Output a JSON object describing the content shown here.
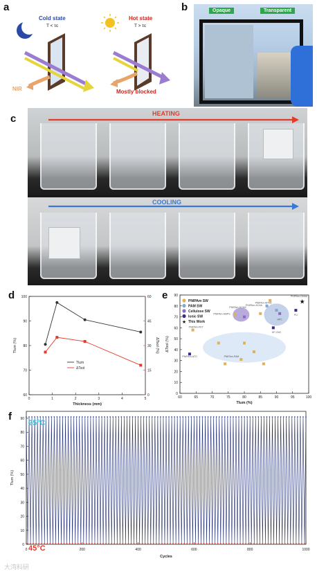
{
  "panels": {
    "a": "a",
    "b": "b",
    "c": "c",
    "d": "d",
    "e": "e",
    "f": "f"
  },
  "panel_a": {
    "cold_label": "Cold state",
    "cold_cond": "T < τc",
    "hot_label": "Hot state",
    "hot_cond": "T > τc",
    "nir": "NIR",
    "blocked": "Mostly blocked"
  },
  "panel_b": {
    "opaque": "Opaque",
    "transparent": "Transparent"
  },
  "panel_c": {
    "heating": "HEATING",
    "cooling": "COOLING"
  },
  "colors": {
    "heat_arrow": "#e53a2a",
    "cool_arrow": "#3a78d8",
    "b_tag": "#2aa84a",
    "cyan_label": "#33c7d6",
    "red_label": "#e53a2a",
    "navy_line": "#1f2a6b"
  },
  "chart_data": [
    {
      "id": "d",
      "type": "line",
      "xlabel": "Thickness (mm)",
      "ylabel_left": "Tlum (%)",
      "ylabel_right": "ΔTsol (%)",
      "x_ticks": [
        "0",
        "1",
        "2",
        "3",
        "4",
        "5"
      ],
      "y_ticks_left": [
        "60",
        "70",
        "80",
        "90",
        "100"
      ],
      "y_ticks_right": [
        "0",
        "15",
        "30",
        "45",
        "60"
      ],
      "xlim": [
        0,
        5
      ],
      "ylim_left": [
        60,
        100
      ],
      "ylim_right": [
        0,
        60
      ],
      "series": [
        {
          "name": "Tlum",
          "axis": "left",
          "color": "#333333",
          "x": [
            0.7,
            1.2,
            2.4,
            4.8
          ],
          "y": [
            80.5,
            97.5,
            90.5,
            85.5
          ]
        },
        {
          "name": "ΔTsol",
          "axis": "right",
          "color": "#e53a2a",
          "x": [
            0.7,
            1.2,
            2.4,
            4.8
          ],
          "y": [
            26,
            35,
            32.5,
            18
          ]
        }
      ]
    },
    {
      "id": "e",
      "type": "scatter",
      "xlabel": "Tlum (%)",
      "ylabel": "ΔTsol (%)",
      "x_ticks": [
        "60",
        "65",
        "70",
        "75",
        "80",
        "85",
        "90",
        "95",
        "100"
      ],
      "y_ticks": [
        "0",
        "10",
        "20",
        "30",
        "40",
        "50",
        "60",
        "70",
        "80",
        "90"
      ],
      "xlim": [
        60,
        100
      ],
      "ylim": [
        0,
        90
      ],
      "legend": [
        "PNIPAm SW",
        "PAM SW",
        "Cellulose SW",
        "Ionic SW",
        "This Work"
      ],
      "annotations": [
        "PNIPAm-DMAA",
        "PNIPAm-ACAA",
        "PNIPAm-DCMC",
        "PNIPAm-HPMC",
        "PNIPAm-PET",
        "PNIPAm-ATO",
        "SF-CNC",
        "PU",
        "HPC",
        "PNIPAm-AMPS",
        "PNIPAm-PAM"
      ],
      "points": [
        {
          "x": 98,
          "y": 84,
          "group": "This Work"
        },
        {
          "x": 64,
          "y": 58,
          "group": "PNIPAm SW"
        },
        {
          "x": 63,
          "y": 36,
          "group": "Ionic SW"
        },
        {
          "x": 72,
          "y": 46,
          "group": "PNIPAm SW"
        },
        {
          "x": 74,
          "y": 27,
          "group": "PNIPAm SW"
        },
        {
          "x": 80,
          "y": 46,
          "group": "PNIPAm SW"
        },
        {
          "x": 83,
          "y": 38,
          "group": "PNIPAm SW"
        },
        {
          "x": 86,
          "y": 27,
          "group": "PNIPAm SW"
        },
        {
          "x": 79,
          "y": 31,
          "group": "PNIPAm SW"
        },
        {
          "x": 80,
          "y": 70,
          "group": "Cellulose SW"
        },
        {
          "x": 88,
          "y": 85,
          "group": "PNIPAm SW"
        },
        {
          "x": 87,
          "y": 80,
          "group": "PAM SW"
        },
        {
          "x": 90,
          "y": 76,
          "group": "PAM SW"
        },
        {
          "x": 91,
          "y": 73,
          "group": "Cellulose SW"
        },
        {
          "x": 96,
          "y": 76,
          "group": "Ionic SW"
        },
        {
          "x": 89,
          "y": 60,
          "group": "Ionic SW"
        },
        {
          "x": 85,
          "y": 73,
          "group": "PNIPAm SW"
        },
        {
          "x": 77,
          "y": 72,
          "group": "PNIPAm SW"
        }
      ]
    },
    {
      "id": "f",
      "type": "line",
      "xlabel": "Cycles",
      "ylabel": "Tlum (%)",
      "x_ticks": [
        "0",
        "200",
        "400",
        "600",
        "800",
        "1000"
      ],
      "y_ticks": [
        "0",
        "10",
        "20",
        "30",
        "40",
        "50",
        "60",
        "70",
        "80",
        "90"
      ],
      "xlim": [
        0,
        1000
      ],
      "ylim": [
        0,
        90
      ],
      "series_labels": [
        "25°C",
        "45°C"
      ],
      "high_value": 91,
      "low_value": 0.5,
      "cycles_shown": 100
    }
  ],
  "watermark": "大湾科研"
}
